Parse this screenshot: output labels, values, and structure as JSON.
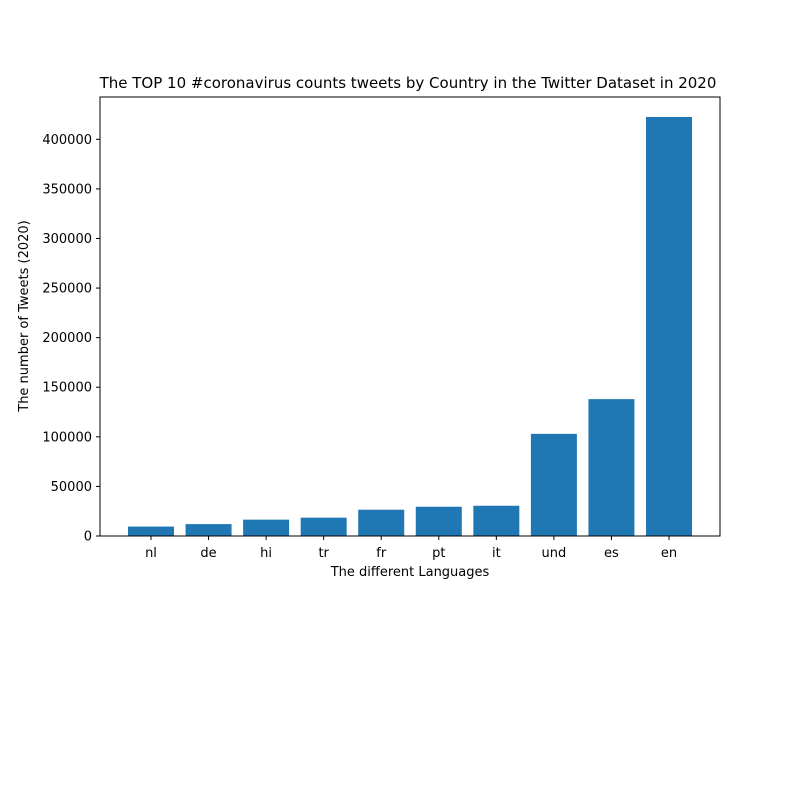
{
  "chart_data": {
    "type": "bar",
    "title": "The TOP 10 #coronavirus counts tweets by Country in the Twitter Dataset in 2020",
    "xlabel": "The different Languages",
    "ylabel": "The number of Tweets (2020)",
    "categories": [
      "nl",
      "de",
      "hi",
      "tr",
      "fr",
      "pt",
      "it",
      "und",
      "es",
      "en"
    ],
    "values": [
      9500,
      12000,
      16500,
      18500,
      26500,
      29500,
      30500,
      103000,
      138000,
      422500
    ],
    "ylim": [
      0,
      422500
    ],
    "yticks": [
      0,
      50000,
      100000,
      150000,
      200000,
      250000,
      300000,
      350000,
      400000
    ],
    "ytick_labels": [
      "0",
      "50000",
      "100000",
      "150000",
      "200000",
      "250000",
      "300000",
      "350000",
      "400000"
    ],
    "bar_color": "#1f77b4",
    "grid": false,
    "legend": "none"
  }
}
